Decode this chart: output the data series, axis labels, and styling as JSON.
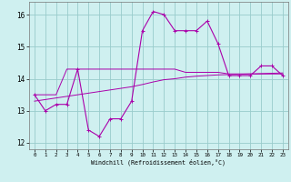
{
  "xlabel": "Windchill (Refroidissement éolien,°C)",
  "background_color": "#cff0f0",
  "line_color": "#aa00aa",
  "grid_color": "#99cccc",
  "xlim": [
    -0.5,
    23.5
  ],
  "ylim": [
    11.8,
    16.4
  ],
  "ytick_values": [
    12,
    13,
    14,
    15,
    16
  ],
  "hours": [
    0,
    1,
    2,
    3,
    4,
    5,
    6,
    7,
    8,
    9,
    10,
    11,
    12,
    13,
    14,
    15,
    16,
    17,
    18,
    19,
    20,
    21,
    22,
    23
  ],
  "line1_y": [
    13.5,
    13.0,
    13.2,
    13.2,
    14.3,
    12.4,
    12.2,
    12.75,
    12.75,
    13.3,
    15.5,
    16.1,
    16.0,
    15.5,
    15.5,
    15.5,
    15.8,
    15.1,
    14.1,
    14.1,
    14.1,
    14.4,
    14.4,
    14.1
  ],
  "line2_y": [
    13.5,
    13.5,
    13.5,
    14.3,
    14.3,
    14.3,
    14.3,
    14.3,
    14.3,
    14.3,
    14.3,
    14.3,
    14.3,
    14.3,
    14.2,
    14.2,
    14.2,
    14.2,
    14.15,
    14.15,
    14.15,
    14.15,
    14.15,
    14.15
  ],
  "line3_y": [
    13.3,
    13.35,
    13.4,
    13.45,
    13.5,
    13.55,
    13.6,
    13.65,
    13.7,
    13.75,
    13.82,
    13.9,
    13.97,
    14.0,
    14.05,
    14.08,
    14.1,
    14.12,
    14.13,
    14.14,
    14.15,
    14.16,
    14.17,
    14.18
  ],
  "xtick_labels": [
    "0",
    "1",
    "2",
    "3",
    "4",
    "5",
    "6",
    "7",
    "8",
    "9",
    "10",
    "11",
    "12",
    "13",
    "14",
    "15",
    "16",
    "17",
    "18",
    "19",
    "20",
    "21",
    "22",
    "23"
  ]
}
